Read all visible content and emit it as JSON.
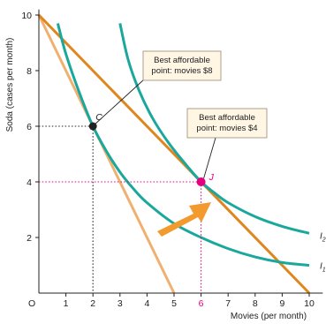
{
  "chart_data": {
    "type": "line",
    "title": "",
    "xlabel": "Movies (per month)",
    "ylabel": "Soda (cases per month)",
    "xlim": [
      0,
      10.5
    ],
    "ylim": [
      0,
      10.2
    ],
    "x_ticks": [
      0,
      1,
      2,
      3,
      4,
      5,
      6,
      7,
      8,
      9,
      10
    ],
    "y_ticks": [
      2,
      4,
      6,
      8,
      10
    ],
    "origin_label": "O",
    "grid": false,
    "colors": {
      "budget_line_price_8": "#f0b070",
      "budget_line_price_4": "#e0861e",
      "indifference_curves": "#1aa79c",
      "point_j": "#e6007e",
      "guide_j": "#e6007e",
      "guide_c": "#222222",
      "arrow": "#f39a2e"
    },
    "budget_lines": [
      {
        "name": "",
        "color_key": "budget_line_price_8",
        "points": [
          [
            0,
            10
          ],
          [
            5,
            0
          ]
        ]
      },
      {
        "name": "",
        "color_key": "budget_line_price_4",
        "points": [
          [
            0,
            10
          ],
          [
            10,
            0
          ]
        ]
      }
    ],
    "indifference_curves": [
      {
        "name": "I",
        "subscript": "1",
        "points": [
          [
            0.7,
            9.7
          ],
          [
            1.0,
            8.6
          ],
          [
            1.5,
            7.2
          ],
          [
            2.0,
            6.0
          ],
          [
            2.5,
            5.1
          ],
          [
            3.0,
            4.35
          ],
          [
            3.5,
            3.75
          ],
          [
            4.0,
            3.25
          ],
          [
            5.0,
            2.5
          ],
          [
            6.0,
            2.0
          ],
          [
            7.0,
            1.6
          ],
          [
            8.0,
            1.3
          ],
          [
            9.0,
            1.1
          ],
          [
            10.0,
            1.0
          ]
        ]
      },
      {
        "name": "I",
        "subscript": "2",
        "points": [
          [
            3.0,
            9.7
          ],
          [
            3.3,
            8.4
          ],
          [
            3.7,
            7.3
          ],
          [
            4.2,
            6.3
          ],
          [
            4.8,
            5.4
          ],
          [
            5.5,
            4.55
          ],
          [
            6.0,
            4.0
          ],
          [
            6.5,
            3.6
          ],
          [
            7.0,
            3.25
          ],
          [
            8.0,
            2.75
          ],
          [
            9.0,
            2.4
          ],
          [
            10.0,
            2.15
          ]
        ]
      }
    ],
    "points": [
      {
        "label": "C",
        "x": 2,
        "y": 6,
        "color_key": "guide_c"
      },
      {
        "label": "J",
        "x": 6,
        "y": 4,
        "color_key": "point_j"
      }
    ],
    "annotations": [
      {
        "text_lines": [
          "Best affordable",
          "point: movies $8"
        ],
        "points_to": "C"
      },
      {
        "text_lines": [
          "Best affordable",
          "point: movies $4"
        ],
        "points_to": "J"
      }
    ]
  }
}
